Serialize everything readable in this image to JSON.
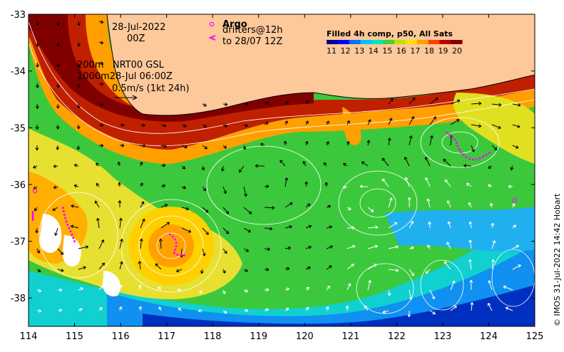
{
  "map": {
    "date_label": "28-Jul-2022",
    "time_label": "00Z",
    "legend": {
      "argo_label": "Argo",
      "drifters_label": "drifters@12h",
      "drifters_to_label": "to 28/07 12Z"
    },
    "colorbar": {
      "title": "Filled 4h comp, p50, All Sats",
      "ticks": [
        "11",
        "12",
        "13",
        "14",
        "15",
        "16",
        "17",
        "18",
        "19",
        "20"
      ],
      "colors": [
        "#00008b",
        "#0000ff",
        "#0070ff",
        "#00c0ff",
        "#00e8b0",
        "#40d040",
        "#c0e000",
        "#ffe000",
        "#ffa000",
        "#ff4000",
        "#c00000",
        "#800000"
      ]
    },
    "current_info": {
      "line1": "200m   NRT00 GSL",
      "line2": "1000m28-Jul 06:00Z",
      "scale_label": "0.5m/s (1kt 24h)"
    },
    "axes": {
      "x_ticks": [
        "114",
        "115",
        "116",
        "117",
        "118",
        "119",
        "120",
        "121",
        "122",
        "123",
        "124",
        "125"
      ],
      "y_ticks": [
        "-33",
        "-34",
        "-35",
        "-36",
        "-37",
        "-38"
      ],
      "xlim": [
        114,
        125
      ],
      "ylim": [
        -38.5,
        -33
      ]
    },
    "credit": "© IMOS 31-Jul-2022 14:42 Hobart",
    "colors": {
      "land": "#fdc89a",
      "warm_current": "#8b1a00",
      "cold_water": "#0040d0"
    }
  }
}
